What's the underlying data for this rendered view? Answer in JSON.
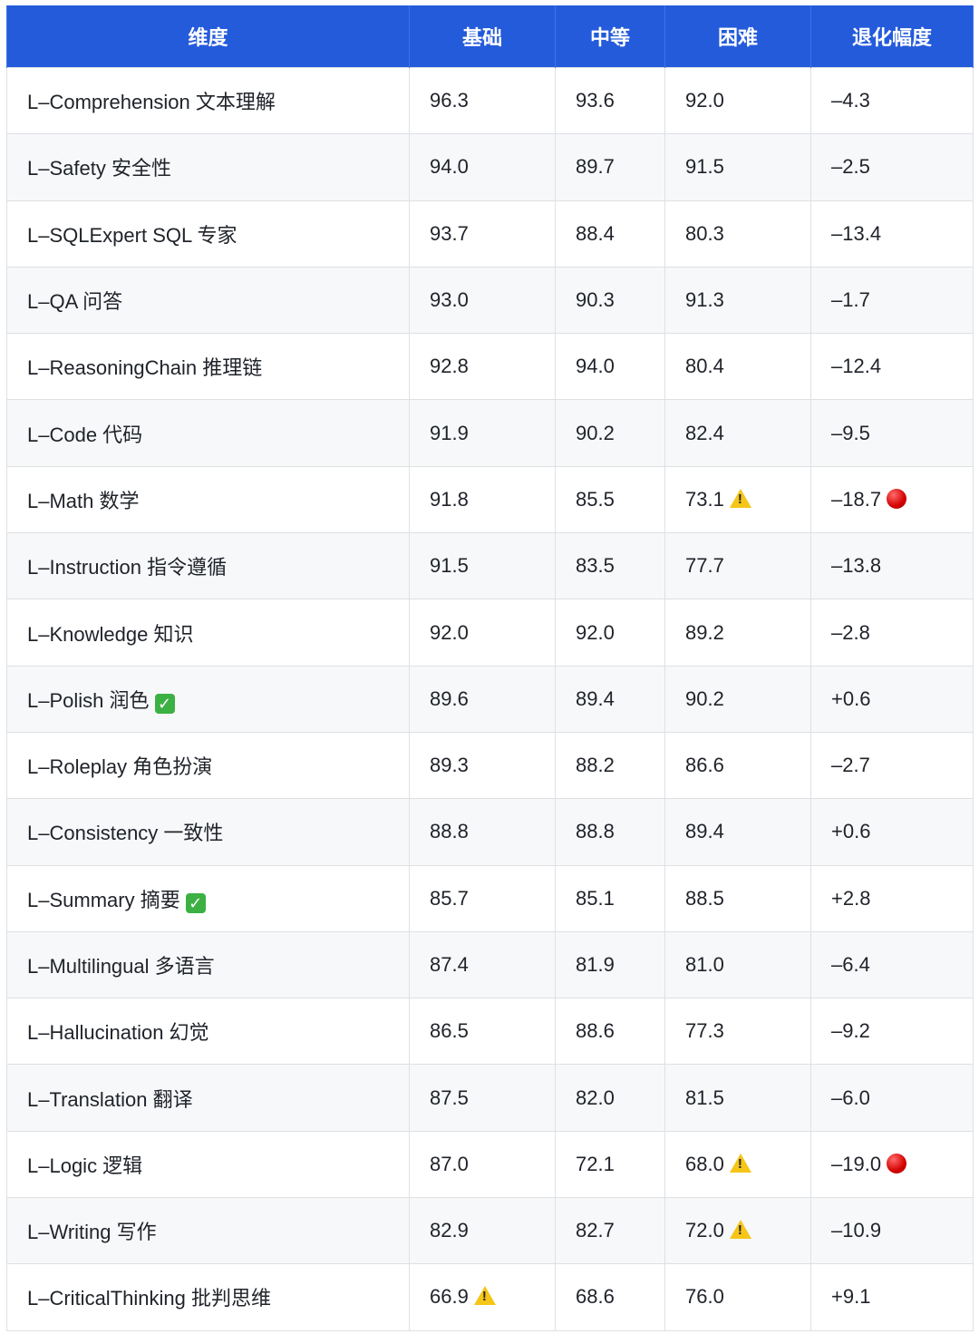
{
  "headers": [
    "维度",
    "基础",
    "中等",
    "困难",
    "退化幅度"
  ],
  "colors": {
    "header_bg": "#245bdb",
    "warning": "#f5c518",
    "alert": "#d40000",
    "check": "#3cb043"
  },
  "rows": [
    {
      "dimension": "L–Comprehension 文本理解",
      "basic": "96.3",
      "medium": "93.6",
      "hard": "92.0",
      "degradation": "–4.3"
    },
    {
      "dimension": "L–Safety 安全性",
      "basic": "94.0",
      "medium": "89.7",
      "hard": "91.5",
      "degradation": "–2.5"
    },
    {
      "dimension": "L–SQLExpert SQL 专家",
      "basic": "93.7",
      "medium": "88.4",
      "hard": "80.3",
      "degradation": "–13.4"
    },
    {
      "dimension": "L–QA 问答",
      "basic": "93.0",
      "medium": "90.3",
      "hard": "91.3",
      "degradation": "–1.7"
    },
    {
      "dimension": "L–ReasoningChain 推理链",
      "basic": "92.8",
      "medium": "94.0",
      "hard": "80.4",
      "degradation": "–12.4"
    },
    {
      "dimension": "L–Code 代码",
      "basic": "91.9",
      "medium": "90.2",
      "hard": "82.4",
      "degradation": "–9.5"
    },
    {
      "dimension": "L–Math 数学",
      "basic": "91.8",
      "medium": "85.5",
      "hard": "73.1",
      "degradation": "–18.7",
      "hard_icon": "warning-icon",
      "degradation_icon": "red-circle-icon"
    },
    {
      "dimension": "L–Instruction 指令遵循",
      "basic": "91.5",
      "medium": "83.5",
      "hard": "77.7",
      "degradation": "–13.8"
    },
    {
      "dimension": "L–Knowledge 知识",
      "basic": "92.0",
      "medium": "92.0",
      "hard": "89.2",
      "degradation": "–2.8"
    },
    {
      "dimension": "L–Polish 润色",
      "basic": "89.6",
      "medium": "89.4",
      "hard": "90.2",
      "degradation": "+0.6",
      "dimension_icon": "check-icon"
    },
    {
      "dimension": "L–Roleplay 角色扮演",
      "basic": "89.3",
      "medium": "88.2",
      "hard": "86.6",
      "degradation": "–2.7"
    },
    {
      "dimension": "L–Consistency 一致性",
      "basic": "88.8",
      "medium": "88.8",
      "hard": "89.4",
      "degradation": "+0.6"
    },
    {
      "dimension": "L–Summary 摘要",
      "basic": "85.7",
      "medium": "85.1",
      "hard": "88.5",
      "degradation": "+2.8",
      "dimension_icon": "check-icon"
    },
    {
      "dimension": "L–Multilingual 多语言",
      "basic": "87.4",
      "medium": "81.9",
      "hard": "81.0",
      "degradation": "–6.4"
    },
    {
      "dimension": "L–Hallucination 幻觉",
      "basic": "86.5",
      "medium": "88.6",
      "hard": "77.3",
      "degradation": "–9.2"
    },
    {
      "dimension": "L–Translation 翻译",
      "basic": "87.5",
      "medium": "82.0",
      "hard": "81.5",
      "degradation": "–6.0"
    },
    {
      "dimension": "L–Logic 逻辑",
      "basic": "87.0",
      "medium": "72.1",
      "hard": "68.0",
      "degradation": "–19.0",
      "hard_icon": "warning-icon",
      "degradation_icon": "red-circle-icon"
    },
    {
      "dimension": "L–Writing 写作",
      "basic": "82.9",
      "medium": "82.7",
      "hard": "72.0",
      "degradation": "–10.9",
      "hard_icon": "warning-icon"
    },
    {
      "dimension": "L–CriticalThinking 批判思维",
      "basic": "66.9",
      "medium": "68.6",
      "hard": "76.0",
      "degradation": "+9.1",
      "basic_icon": "warning-icon"
    }
  ]
}
